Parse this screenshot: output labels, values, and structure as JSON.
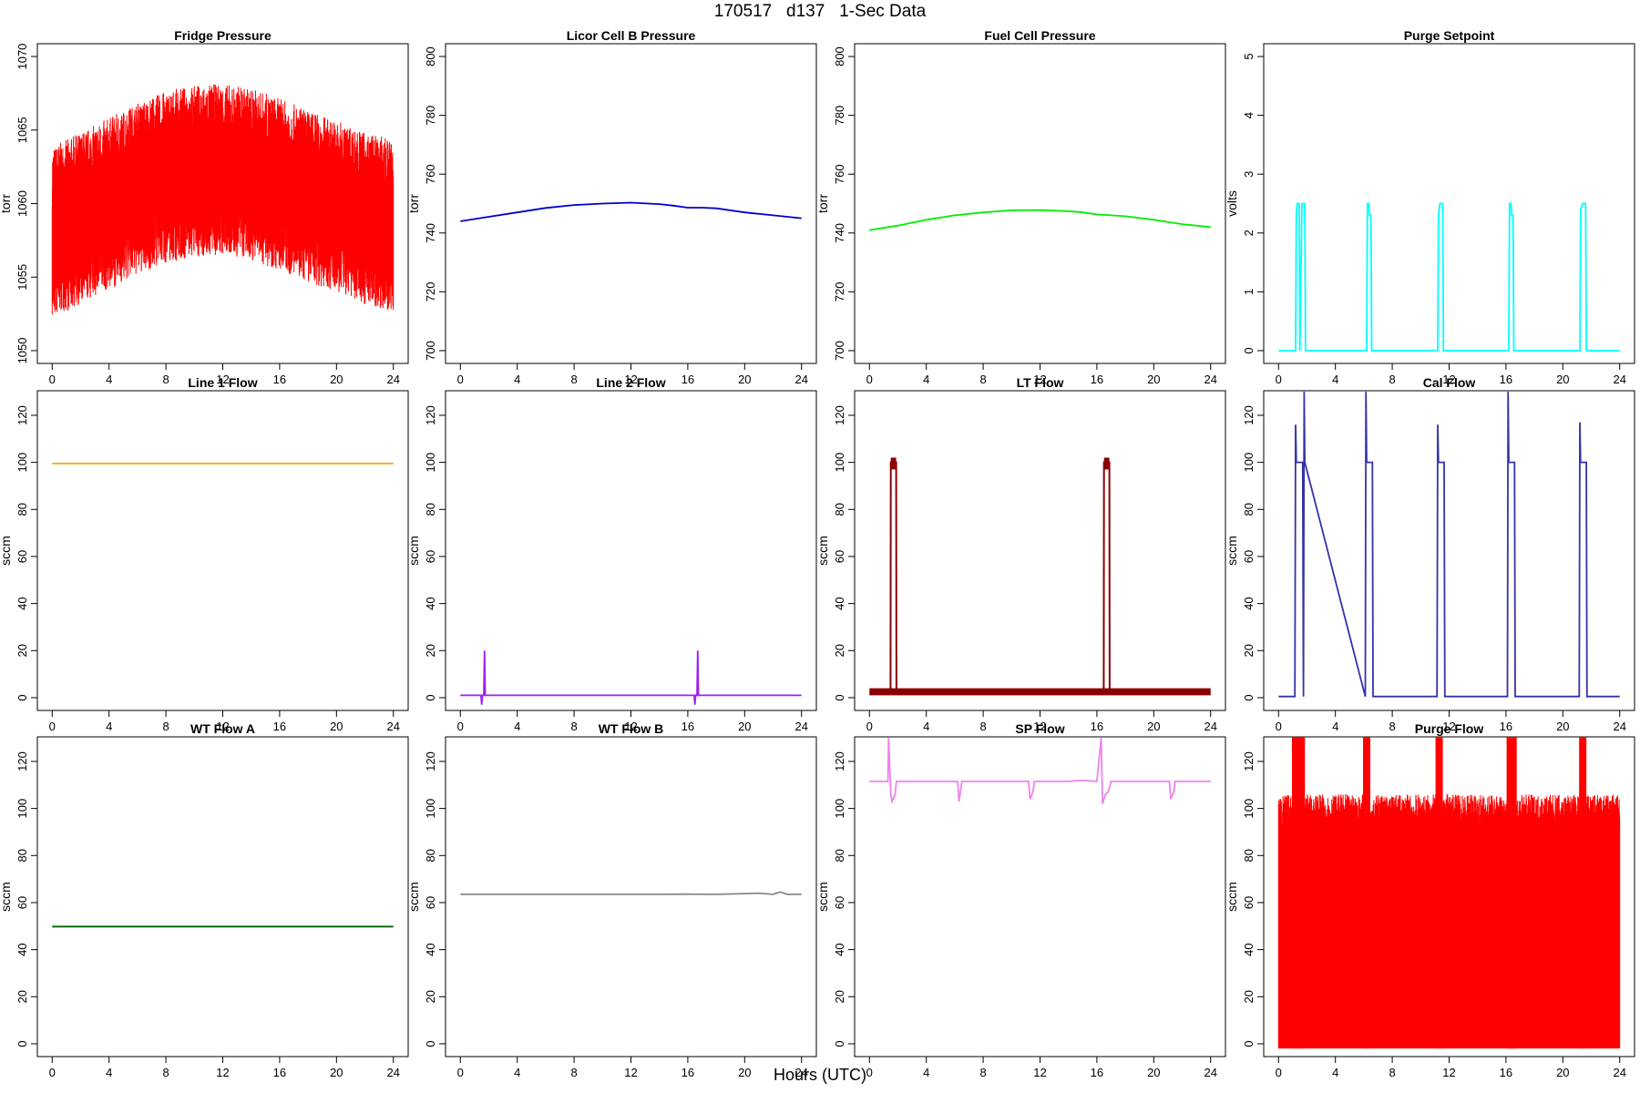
{
  "page": {
    "title": "170517   d137   1-Sec Data",
    "xlabel": "Hours (UTC)"
  },
  "chart_data": [
    {
      "type": "line",
      "title": "Fridge Pressure",
      "ylabel": "torr",
      "xlim": [
        0,
        24
      ],
      "ylim": [
        1050,
        1070
      ],
      "xticks": [
        0,
        4,
        8,
        12,
        16,
        20,
        24
      ],
      "yticks": [
        1050,
        1055,
        1060,
        1065,
        1070
      ],
      "color": "#ff0000",
      "render": "noise",
      "series": [
        {
          "x": [
            0,
            2,
            4,
            6,
            8,
            10,
            12,
            14,
            16,
            18,
            20,
            22,
            24
          ],
          "y": [
            1058,
            1059,
            1060,
            1061,
            1061.8,
            1062.2,
            1062.3,
            1062,
            1061.3,
            1060.5,
            1059.8,
            1059,
            1058.5
          ]
        }
      ],
      "spread": [
        4.5,
        4.5,
        4.5,
        4.5,
        4.5,
        4.5,
        4.5,
        4.5,
        4.5,
        4.5,
        4.5,
        4.5,
        4.5
      ]
    },
    {
      "type": "line",
      "title": "Licor Cell B Pressure",
      "ylabel": "torr",
      "xlim": [
        0,
        24
      ],
      "ylim": [
        700,
        800
      ],
      "xticks": [
        0,
        4,
        8,
        12,
        16,
        20,
        24
      ],
      "yticks": [
        700,
        720,
        740,
        760,
        780,
        800
      ],
      "color": "#0000cd",
      "render": "line",
      "series": [
        {
          "x": [
            0,
            2,
            4,
            6,
            8,
            10,
            12,
            14,
            15,
            16,
            17,
            18,
            20,
            22,
            24
          ],
          "y": [
            744,
            745.5,
            747,
            748.5,
            749.5,
            750,
            750.3,
            749.8,
            749.3,
            748.6,
            748.6,
            748.4,
            747,
            746,
            745
          ]
        }
      ]
    },
    {
      "type": "line",
      "title": "Fuel Cell Pressure",
      "ylabel": "torr",
      "xlim": [
        0,
        24
      ],
      "ylim": [
        700,
        800
      ],
      "xticks": [
        0,
        4,
        8,
        12,
        16,
        20,
        24
      ],
      "yticks": [
        700,
        720,
        740,
        760,
        780,
        800
      ],
      "color": "#00ee00",
      "render": "line",
      "series": [
        {
          "x": [
            0,
            2,
            4,
            6,
            8,
            10,
            12,
            14,
            15,
            16,
            17,
            18,
            20,
            22,
            24
          ],
          "y": [
            741,
            742.5,
            744.5,
            746,
            747,
            747.7,
            747.8,
            747.4,
            747,
            746.3,
            746,
            745.7,
            744.5,
            743,
            742
          ]
        }
      ]
    },
    {
      "type": "line",
      "title": "Purge Setpoint",
      "ylabel": "volts",
      "xlim": [
        0,
        24
      ],
      "ylim": [
        0,
        5
      ],
      "xticks": [
        0,
        4,
        8,
        12,
        16,
        20,
        24
      ],
      "yticks": [
        0,
        1,
        2,
        3,
        4,
        5
      ],
      "color": "#00ffff",
      "render": "line",
      "series": [
        {
          "x": [
            0,
            1.2,
            1.25,
            1.3,
            1.45,
            1.5,
            1.65,
            1.7,
            1.85,
            1.9,
            6.2,
            6.25,
            6.35,
            6.4,
            6.5,
            6.55,
            11.2,
            11.25,
            11.35,
            11.4,
            11.55,
            11.6,
            16.2,
            16.25,
            16.35,
            16.4,
            16.5,
            16.55,
            21.2,
            21.25,
            21.4,
            21.45,
            21.6,
            21.65,
            24
          ],
          "y": [
            0,
            0,
            2.3,
            2.5,
            2.5,
            0,
            2.5,
            2.5,
            2.5,
            0,
            0,
            2.5,
            2.5,
            2.3,
            2.3,
            0,
            0,
            2.3,
            2.5,
            2.5,
            2.5,
            0,
            0,
            2.5,
            2.5,
            2.3,
            2.3,
            0,
            0,
            2.4,
            2.5,
            2.5,
            2.5,
            0,
            0
          ]
        }
      ]
    },
    {
      "type": "line",
      "title": "Line 1 Flow",
      "ylabel": "sccm",
      "xlim": [
        0,
        24
      ],
      "ylim": [
        0,
        125
      ],
      "xticks": [
        0,
        4,
        8,
        12,
        16,
        20,
        24
      ],
      "yticks": [
        0,
        20,
        40,
        60,
        80,
        100,
        120
      ],
      "color": "#ffa500",
      "render": "line",
      "series": [
        {
          "x": [
            0,
            24
          ],
          "y": [
            99.5,
            99.5
          ]
        }
      ]
    },
    {
      "type": "line",
      "title": "Line 2 Flow",
      "ylabel": "sccm",
      "xlim": [
        0,
        24
      ],
      "ylim": [
        0,
        125
      ],
      "xticks": [
        0,
        4,
        8,
        12,
        16,
        20,
        24
      ],
      "yticks": [
        0,
        20,
        40,
        60,
        80,
        100,
        120
      ],
      "color": "#a020f0",
      "render": "line",
      "series": [
        {
          "x": [
            0,
            1.45,
            1.5,
            1.55,
            1.65,
            1.7,
            1.75,
            16.45,
            16.5,
            16.55,
            16.65,
            16.7,
            16.75,
            24
          ],
          "y": [
            1,
            1,
            -3,
            1,
            1,
            20,
            1,
            1,
            -3,
            1,
            1,
            20,
            1,
            1
          ]
        }
      ]
    },
    {
      "type": "line",
      "title": "LT Flow",
      "ylabel": "sccm",
      "xlim": [
        0,
        24
      ],
      "ylim": [
        0,
        125
      ],
      "xticks": [
        0,
        4,
        8,
        12,
        16,
        20,
        24
      ],
      "yticks": [
        0,
        20,
        40,
        60,
        80,
        100,
        120
      ],
      "color": "#8b0000",
      "render": "line",
      "band": [
        1,
        4
      ],
      "series": [
        {
          "x": [
            0,
            1.48,
            1.5,
            1.88,
            1.9,
            16.48,
            16.5,
            16.88,
            16.9,
            24
          ],
          "y": [
            2,
            2,
            100,
            100,
            2,
            2,
            100,
            100,
            2,
            2
          ]
        }
      ]
    },
    {
      "type": "line",
      "title": "Cal Flow",
      "ylabel": "sccm",
      "xlim": [
        0,
        24
      ],
      "ylim": [
        0,
        125
      ],
      "xticks": [
        0,
        4,
        8,
        12,
        16,
        20,
        24
      ],
      "yticks": [
        0,
        20,
        40,
        60,
        80,
        100,
        120
      ],
      "color": "#3333aa",
      "render": "line",
      "series": [
        {
          "x": [
            0,
            1.15,
            1.2,
            1.25,
            1.7,
            1.75,
            1.8,
            1.85,
            6.1,
            6.15,
            6.2,
            6.6,
            6.65,
            11.15,
            11.2,
            11.25,
            11.65,
            11.7,
            16.1,
            16.15,
            16.2,
            16.6,
            16.65,
            21.15,
            21.2,
            21.25,
            21.65,
            21.7,
            24
          ],
          "y": [
            0.5,
            0.5,
            116,
            100,
            100,
            0.5,
            130,
            100,
            0.5,
            130,
            100,
            100,
            0.5,
            0.5,
            116,
            100,
            100,
            0.5,
            0.5,
            130,
            100,
            100,
            0.5,
            0.5,
            117,
            100,
            100,
            0.5,
            0.5
          ]
        }
      ]
    },
    {
      "type": "line",
      "title": "WT Flow A",
      "ylabel": "sccm",
      "xlim": [
        0,
        24
      ],
      "ylim": [
        0,
        125
      ],
      "xticks": [
        0,
        4,
        8,
        12,
        16,
        20,
        24
      ],
      "yticks": [
        0,
        20,
        40,
        60,
        80,
        100,
        120
      ],
      "color": "#006400",
      "render": "line",
      "series": [
        {
          "x": [
            0,
            24
          ],
          "y": [
            49.8,
            49.8
          ]
        }
      ]
    },
    {
      "type": "line",
      "title": "WT Flow B",
      "ylabel": "sccm",
      "xlim": [
        0,
        24
      ],
      "ylim": [
        0,
        125
      ],
      "xticks": [
        0,
        4,
        8,
        12,
        16,
        20,
        24
      ],
      "yticks": [
        0,
        20,
        40,
        60,
        80,
        100,
        120
      ],
      "color": "#888888",
      "render": "line",
      "series": [
        {
          "x": [
            0,
            14,
            16,
            18,
            20,
            21,
            22,
            22.5,
            23,
            24
          ],
          "y": [
            63.5,
            63.5,
            63.6,
            63.5,
            63.8,
            64,
            63.5,
            64.5,
            63.5,
            63.5
          ]
        }
      ]
    },
    {
      "type": "line",
      "title": "SP Flow",
      "ylabel": "sccm",
      "xlim": [
        0,
        24
      ],
      "ylim": [
        0,
        125
      ],
      "xticks": [
        0,
        4,
        8,
        12,
        16,
        20,
        24
      ],
      "yticks": [
        0,
        20,
        40,
        60,
        80,
        100,
        120
      ],
      "color": "#ee82ee",
      "render": "line",
      "series": [
        {
          "x": [
            0,
            1.3,
            1.35,
            1.5,
            1.6,
            1.8,
            1.9,
            6.2,
            6.3,
            6.4,
            6.5,
            11.2,
            11.3,
            11.5,
            11.6,
            14,
            15,
            16,
            16.3,
            16.4,
            16.6,
            16.8,
            17,
            21.1,
            21.2,
            21.4,
            21.5,
            24
          ],
          "y": [
            111.5,
            111.5,
            130,
            106,
            103,
            106,
            111.5,
            111.5,
            103,
            107,
            111.5,
            111.5,
            104,
            107,
            111.5,
            111.5,
            112,
            111.5,
            130,
            102,
            106,
            107,
            111.5,
            111.5,
            104,
            107,
            111.5,
            111.5
          ]
        }
      ]
    },
    {
      "type": "line",
      "title": "Purge Flow",
      "ylabel": "sccm",
      "xlim": [
        0,
        24
      ],
      "ylim": [
        0,
        125
      ],
      "xticks": [
        0,
        4,
        8,
        12,
        16,
        20,
        24
      ],
      "yticks": [
        0,
        20,
        40,
        60,
        80,
        100,
        120
      ],
      "color": "#ff0000",
      "render": "fill",
      "series": [
        {
          "x": [
            0,
            4,
            8,
            12,
            16,
            20,
            24
          ],
          "y": [
            100,
            100,
            100,
            100,
            100,
            100,
            100
          ]
        }
      ],
      "spikes": [
        1.2,
        1.6,
        6.2,
        11.3,
        16.3,
        16.5,
        21.4
      ]
    }
  ]
}
